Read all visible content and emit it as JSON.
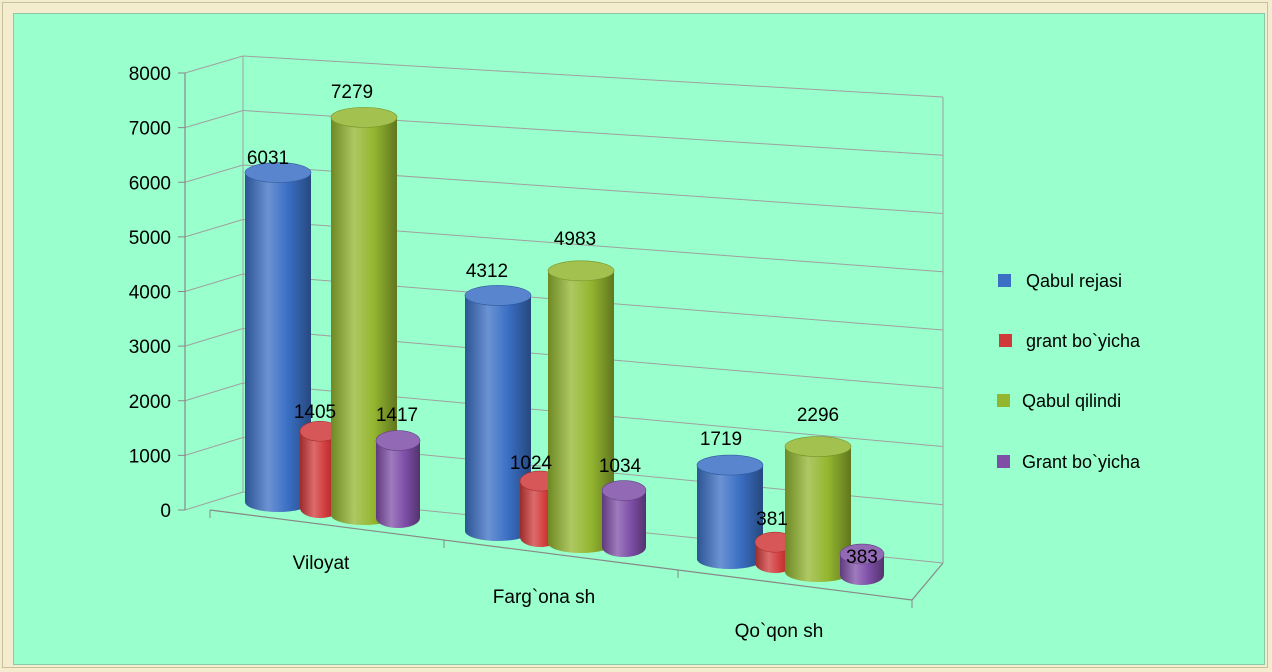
{
  "chart_data": {
    "type": "bar",
    "style": "3d-cylinder",
    "title": "",
    "xlabel": "",
    "ylabel": "",
    "ylim": [
      0,
      8000
    ],
    "yticks": [
      0,
      1000,
      2000,
      3000,
      4000,
      5000,
      6000,
      7000,
      8000
    ],
    "grid": true,
    "legend_position": "right",
    "categories": [
      "Viloyat",
      "Farg`ona sh",
      "Qo`qon sh"
    ],
    "series": [
      {
        "name": "Qabul rejasi",
        "color": "#3a6fc4",
        "values": [
          6031,
          4312,
          1719
        ]
      },
      {
        "name": "grant bo`yicha",
        "color": "#d0393a",
        "values": [
          1405,
          1024,
          381
        ]
      },
      {
        "name": "Qabul qilindi",
        "color": "#93b62f",
        "values": [
          7279,
          4983,
          2296
        ]
      },
      {
        "name": "Grant bo`yicha",
        "color": "#7f4fa8",
        "values": [
          1417,
          1034,
          383
        ]
      }
    ]
  }
}
